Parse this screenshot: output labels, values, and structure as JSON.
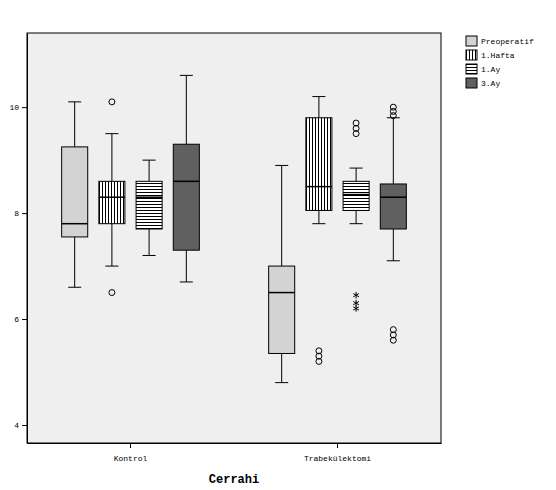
{
  "chart_data": {
    "type": "box",
    "xlabel": "Cerrahi",
    "categories": [
      "Kontrol",
      "Trabekülektomi"
    ],
    "ylim": [
      3.66,
      11.4
    ],
    "yticks": [
      4,
      6,
      8,
      10
    ],
    "legend": "right",
    "series": [
      {
        "name": "Preoperatif",
        "color": "#d3d3d3",
        "values": [
          {
            "min": 6.6,
            "q1": 7.55,
            "median": 7.8,
            "q3": 9.25,
            "max": 10.1
          },
          {
            "min": 4.8,
            "q1": 5.35,
            "median": 6.5,
            "q3": 7.0,
            "max": 8.9
          }
        ]
      },
      {
        "name": "1.Hafta",
        "color": "#ffffff",
        "values": [
          {
            "min": 7.0,
            "q1": 7.8,
            "median": 8.3,
            "q3": 8.6,
            "max": 9.5,
            "outliers": [
              10.1,
              6.5
            ]
          },
          {
            "min": 7.8,
            "q1": 8.05,
            "median": 8.5,
            "q3": 9.8,
            "max": 10.2,
            "outliers": [
              5.4,
              5.3,
              5.2
            ]
          }
        ]
      },
      {
        "name": "1.Ay",
        "color": "#ffffff",
        "values": [
          {
            "min": 7.2,
            "q1": 7.7,
            "median": 8.3,
            "q3": 8.6,
            "max": 9.0
          },
          {
            "min": 7.8,
            "q1": 8.05,
            "median": 8.35,
            "q3": 8.6,
            "max": 8.85,
            "outliers": [
              9.7,
              9.6,
              9.5
            ],
            "extremes": [
              6.45,
              6.3,
              6.2
            ]
          }
        ]
      },
      {
        "name": "3.Ay",
        "color": "#606060",
        "values": [
          {
            "min": 6.7,
            "q1": 7.3,
            "median": 8.6,
            "q3": 9.3,
            "max": 10.6
          },
          {
            "min": 7.1,
            "q1": 7.7,
            "median": 8.3,
            "q3": 8.55,
            "max": 9.8,
            "outliers": [
              10.0,
              9.92,
              9.84,
              5.8,
              5.7,
              5.6
            ]
          }
        ]
      }
    ]
  }
}
